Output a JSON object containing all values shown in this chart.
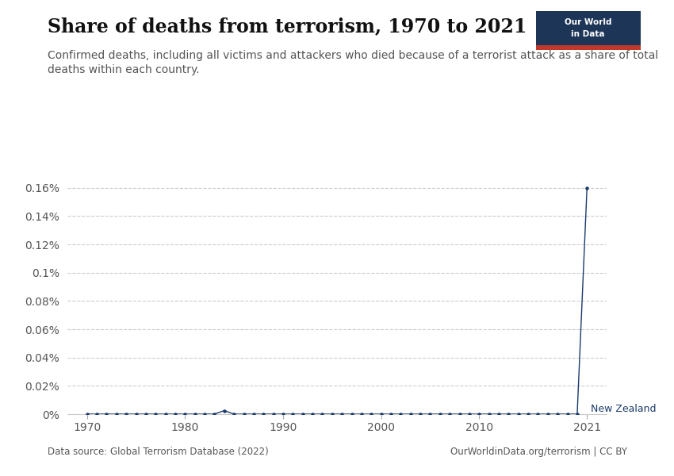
{
  "title": "Share of deaths from terrorism, 1970 to 2021",
  "subtitle": "Confirmed deaths, including all victims and attackers who died because of a terrorist attack as a share of total\ndeaths within each country.",
  "data_source": "Data source: Global Terrorism Database (2022)",
  "url": "OurWorldinData.org/terrorism | CC BY",
  "country_label": "New Zealand",
  "line_color": "#1a3a6b",
  "background_color": "#ffffff",
  "owid_box_color": "#1d3557",
  "owid_box_red": "#c0392b",
  "years": [
    1970,
    1971,
    1972,
    1973,
    1974,
    1975,
    1976,
    1977,
    1978,
    1979,
    1980,
    1981,
    1982,
    1983,
    1984,
    1985,
    1986,
    1987,
    1988,
    1989,
    1990,
    1991,
    1992,
    1993,
    1994,
    1995,
    1996,
    1997,
    1998,
    1999,
    2000,
    2001,
    2002,
    2003,
    2004,
    2005,
    2006,
    2007,
    2008,
    2009,
    2010,
    2011,
    2012,
    2013,
    2014,
    2015,
    2016,
    2017,
    2018,
    2019,
    2020,
    2021
  ],
  "values": [
    0.0,
    0.0,
    0.0,
    0.0,
    0.0,
    0.0,
    0.0,
    0.0,
    0.0,
    0.0,
    0.0,
    0.0,
    0.0,
    0.0,
    2.5e-05,
    0.0,
    0.0,
    0.0,
    0.0,
    0.0,
    0.0,
    0.0,
    0.0,
    0.0,
    0.0,
    0.0,
    0.0,
    0.0,
    0.0,
    0.0,
    0.0,
    0.0,
    0.0,
    0.0,
    0.0,
    0.0,
    0.0,
    0.0,
    0.0,
    0.0,
    0.0,
    0.0,
    0.0,
    0.0,
    0.0,
    0.0,
    0.0,
    0.0,
    0.0,
    0.0,
    0.0,
    0.0016
  ],
  "ylim_max": 0.00175,
  "xlim": [
    1968,
    2023
  ],
  "ytick_vals": [
    0,
    0.0002,
    0.0004,
    0.0006,
    0.0008,
    0.001,
    0.0012,
    0.0014,
    0.0016
  ],
  "ytick_labels": [
    "0%",
    "0.02%",
    "0.04%",
    "0.06%",
    "0.08%",
    "0.1%",
    "0.12%",
    "0.14%",
    "0.16%"
  ],
  "xtick_vals": [
    1970,
    1980,
    1990,
    2000,
    2010,
    2021
  ],
  "grid_color": "#cccccc",
  "title_fontsize": 17,
  "subtitle_fontsize": 10,
  "tick_fontsize": 10,
  "label_color": "#555555",
  "annotation_color": "#1a3a6b"
}
